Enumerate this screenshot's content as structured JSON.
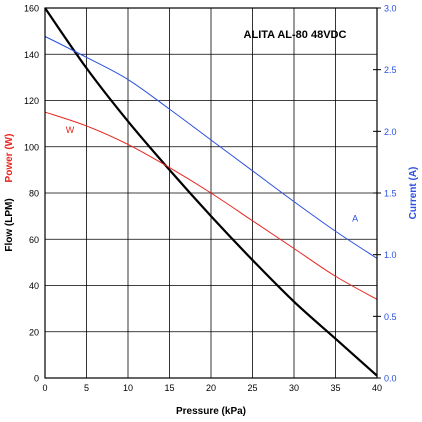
{
  "chart_data": {
    "type": "line",
    "title": "ALITA AL-80 48VDC",
    "xlabel": "Pressure (kPa)",
    "ylabel_left_flow": "Flow (LPM)",
    "ylabel_left_power": "Power (W)",
    "ylabel_right": "Current (A)",
    "xlim": [
      0,
      40
    ],
    "ylim_left": [
      0,
      160
    ],
    "ylim_right": [
      0,
      3.0
    ],
    "x_ticks": [
      "0",
      "5",
      "10",
      "15",
      "20",
      "25",
      "30",
      "35",
      "40"
    ],
    "y_left_ticks": [
      "0",
      "20",
      "40",
      "60",
      "80",
      "100",
      "120",
      "140",
      "160"
    ],
    "y_right_ticks": [
      "0.0",
      "0.5",
      "1.0",
      "1.5",
      "2.0",
      "2.5",
      "3.0"
    ],
    "grid": true,
    "colors": {
      "flow": "#000000",
      "power": "#e8251e",
      "current": "#2b50e0",
      "grid": "#000000"
    },
    "series": [
      {
        "key": "flow",
        "axis": "left",
        "x": [
          0,
          5,
          10,
          15,
          20,
          25,
          30,
          35,
          40
        ],
        "values": [
          160,
          134,
          111,
          90,
          70,
          51,
          33,
          17,
          1
        ]
      },
      {
        "key": "power",
        "name": "W",
        "axis": "left",
        "x": [
          0,
          5,
          10,
          15,
          20,
          25,
          30,
          35,
          40
        ],
        "values": [
          115,
          109,
          101,
          91,
          80,
          68,
          56,
          44,
          34
        ]
      },
      {
        "key": "current",
        "name": "A",
        "axis": "right",
        "x": [
          0,
          5,
          10,
          15,
          20,
          25,
          30,
          35,
          40
        ],
        "values": [
          2.77,
          2.6,
          2.42,
          2.18,
          1.93,
          1.68,
          1.43,
          1.19,
          0.97
        ]
      }
    ],
    "annotations": [
      {
        "text": "W",
        "series": "power",
        "x": 2.5,
        "y": 106
      },
      {
        "text": "A",
        "series": "current",
        "x": 37,
        "y": 1.27
      }
    ]
  }
}
